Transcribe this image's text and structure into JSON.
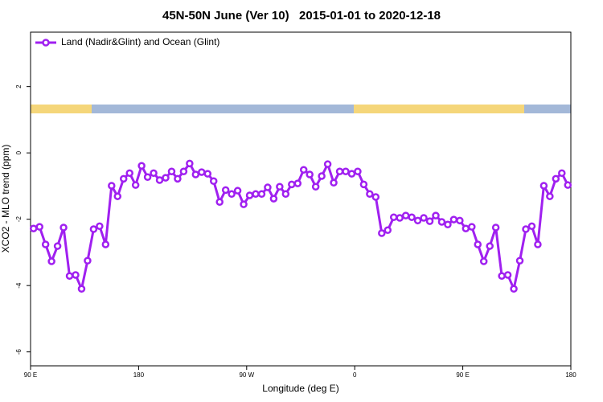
{
  "chart_data": {
    "type": "line",
    "title": "45N-50N June (Ver 10)   2015-01-01 to 2020-12-18",
    "x_label": "Longitude (deg E)",
    "y_label": "XCO2 - MLO trend (ppm)",
    "x": [
      92.5,
      97.5,
      102.5,
      107.5,
      112.5,
      117.5,
      122.5,
      127.5,
      132.5,
      137.5,
      142.5,
      147.5,
      152.5,
      157.5,
      162.5,
      167.5,
      172.5,
      177.5,
      182.5,
      187.5,
      192.5,
      197.5,
      202.5,
      207.5,
      212.5,
      217.5,
      222.5,
      227.5,
      232.5,
      237.5,
      242.5,
      247.5,
      252.5,
      257.5,
      262.5,
      267.5,
      272.5,
      277.5,
      282.5,
      287.5,
      292.5,
      297.5,
      302.5,
      307.5,
      312.5,
      317.5,
      322.5,
      327.5,
      332.5,
      337.5,
      342.5,
      347.5,
      352.5,
      357.5,
      362.5,
      367.5,
      372.5,
      377.5,
      382.5,
      387.5,
      392.5,
      397.5,
      402.5,
      407.5,
      412.5,
      417.5,
      422.5,
      427.5,
      432.5,
      437.5,
      442.5,
      447.5,
      452.5,
      457.5,
      462.5,
      467.5,
      472.5,
      477.5,
      482.5,
      487.5,
      492.5,
      497.5,
      502.5,
      507.5,
      512.5,
      517.5,
      522.5,
      527.5,
      532.5,
      537.5
    ],
    "series": [
      {
        "name": "Land (Nadir&Glint) and Ocean (Glint)",
        "color": "#a020f0",
        "values": [
          -2.28,
          -2.23,
          -2.76,
          -3.27,
          -2.81,
          -2.25,
          -3.71,
          -3.68,
          -4.1,
          -3.25,
          -2.3,
          -2.21,
          -2.76,
          -0.99,
          -1.31,
          -0.78,
          -0.61,
          -0.97,
          -0.39,
          -0.73,
          -0.61,
          -0.82,
          -0.75,
          -0.56,
          -0.78,
          -0.56,
          -0.32,
          -0.65,
          -0.58,
          -0.63,
          -0.85,
          -1.48,
          -1.12,
          -1.24,
          -1.14,
          -1.55,
          -1.28,
          -1.24,
          -1.24,
          -1.04,
          -1.38,
          -1.02,
          -1.24,
          -0.95,
          -0.92,
          -0.51,
          -0.65,
          -1.02,
          -0.7,
          -0.34,
          -0.9,
          -0.56,
          -0.56,
          -0.63,
          -0.56,
          -0.95,
          -1.24,
          -1.33,
          -2.42,
          -2.33,
          -1.94,
          -1.96,
          -1.89,
          -1.94,
          -2.04,
          -1.96,
          -2.06,
          -1.89,
          -2.08,
          -2.16,
          -2.01,
          -2.04,
          -2.28,
          -2.23,
          -2.76,
          -3.27,
          -2.81,
          -2.25,
          -3.71,
          -3.68,
          -4.1,
          -3.25,
          -2.3,
          -2.21,
          -2.76,
          -0.99,
          -1.31,
          -0.78,
          -0.61,
          -0.97
        ]
      }
    ],
    "xlim": [
      90,
      540
    ],
    "xticks": [
      {
        "value": 90,
        "label": "90 E"
      },
      180,
      {
        "value": 270,
        "label": "90 W"
      },
      {
        "value": 360,
        "label": "0"
      },
      {
        "value": 450,
        "label": "90 E"
      },
      {
        "value": 540,
        "label": "180"
      }
    ],
    "ylim": [
      -6.42,
      3.64
    ],
    "yticks": [
      2,
      0,
      -2,
      -4,
      -6
    ],
    "legend": "top-left"
  }
}
